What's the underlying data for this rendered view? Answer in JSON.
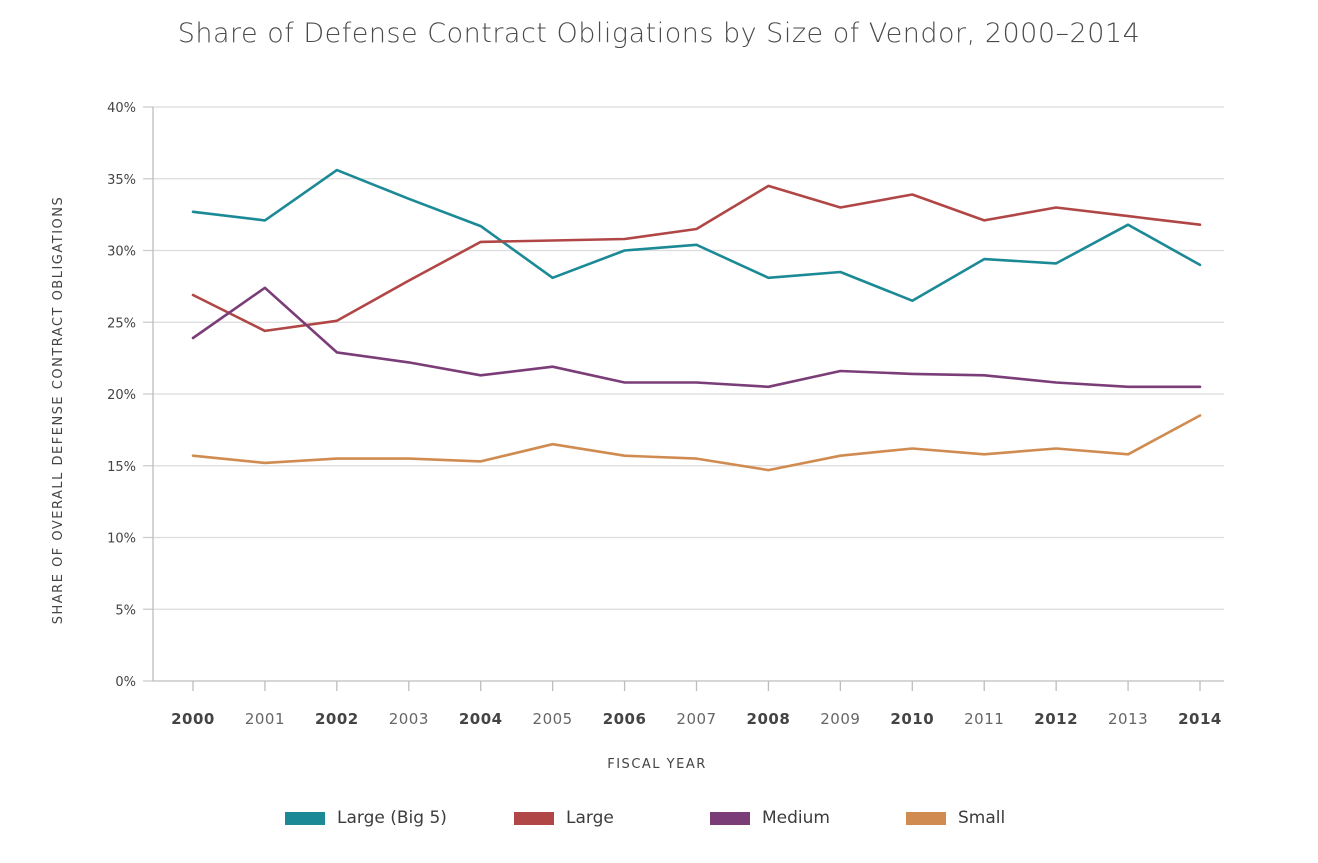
{
  "chart_data": {
    "type": "line",
    "title": "Share of Defense Contract Obligations by Size of Vendor, 2000–2014",
    "xlabel": "FISCAL YEAR",
    "ylabel": "SHARE OF OVERALL DEFENSE CONTRACT OBLIGATIONS",
    "x": [
      "2000",
      "2001",
      "2002",
      "2003",
      "2004",
      "2005",
      "2006",
      "2007",
      "2008",
      "2009",
      "2010",
      "2011",
      "2012",
      "2013",
      "2014"
    ],
    "ylim": [
      0,
      40
    ],
    "yticks": [
      0,
      5,
      10,
      15,
      20,
      25,
      30,
      35,
      40
    ],
    "ytick_labels": [
      "0%",
      "5%",
      "10%",
      "15%",
      "20%",
      "25%",
      "30%",
      "35%",
      "40%"
    ],
    "grid": true,
    "legend_position": "bottom",
    "series": [
      {
        "name": "Large (Big 5)",
        "color": "#1b8a96",
        "values": [
          32.7,
          32.1,
          35.6,
          33.6,
          31.7,
          28.1,
          30.0,
          30.4,
          28.1,
          28.5,
          26.5,
          29.4,
          29.1,
          31.8,
          29.0
        ]
      },
      {
        "name": "Large",
        "color": "#b04746",
        "values": [
          26.9,
          24.4,
          25.1,
          27.9,
          30.6,
          30.7,
          30.8,
          31.5,
          34.5,
          33.0,
          33.9,
          32.1,
          33.0,
          32.4,
          31.8
        ]
      },
      {
        "name": "Medium",
        "color": "#7b3d78",
        "values": [
          23.9,
          27.4,
          22.9,
          22.2,
          21.3,
          21.9,
          20.8,
          20.8,
          20.5,
          21.6,
          21.4,
          21.3,
          20.8,
          20.5,
          20.5
        ]
      },
      {
        "name": "Small",
        "color": "#d08b50",
        "values": [
          15.7,
          15.2,
          15.5,
          15.5,
          15.3,
          16.5,
          15.7,
          15.5,
          14.7,
          15.7,
          16.2,
          15.8,
          16.2,
          15.8,
          18.5
        ]
      }
    ]
  }
}
